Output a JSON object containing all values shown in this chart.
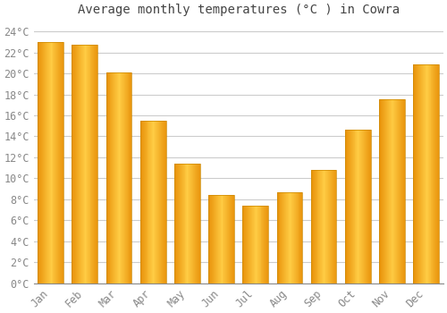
{
  "title": "Average monthly temperatures (°C ) in Cowra",
  "months": [
    "Jan",
    "Feb",
    "Mar",
    "Apr",
    "May",
    "Jun",
    "Jul",
    "Aug",
    "Sep",
    "Oct",
    "Nov",
    "Dec"
  ],
  "values": [
    23.0,
    22.7,
    20.1,
    15.5,
    11.4,
    8.4,
    7.4,
    8.7,
    10.8,
    14.6,
    17.5,
    20.9
  ],
  "bar_color_left": "#E8920A",
  "bar_color_center": "#FFCC44",
  "bar_color_right": "#E8920A",
  "background_color": "#FFFFFF",
  "plot_bg_color": "#FFFFFF",
  "grid_color": "#CCCCCC",
  "tick_color": "#888888",
  "title_color": "#444444",
  "ylim": [
    0,
    25
  ],
  "yticks": [
    0,
    2,
    4,
    6,
    8,
    10,
    12,
    14,
    16,
    18,
    20,
    22,
    24
  ],
  "title_fontsize": 10,
  "tick_fontsize": 8.5,
  "bar_width": 0.75
}
